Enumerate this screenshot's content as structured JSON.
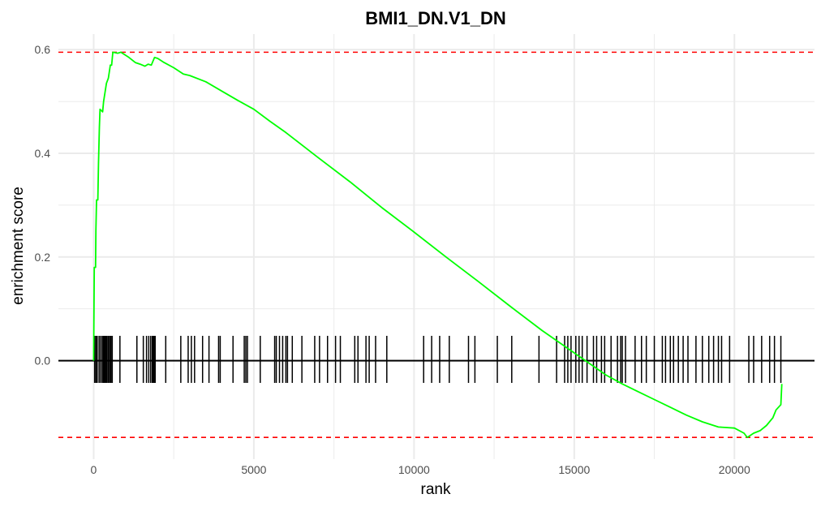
{
  "chart_data": {
    "type": "line",
    "title": "BMI1_DN.V1_DN",
    "xlabel": "rank",
    "ylabel": "enrichment score",
    "xlim": [
      -1100,
      22500
    ],
    "ylim": [
      -0.19,
      0.63
    ],
    "x_ticks": [
      0,
      5000,
      10000,
      15000,
      20000
    ],
    "x_tick_labels": [
      "0",
      "5000",
      "10000",
      "15000",
      "20000"
    ],
    "y_ticks": [
      0.0,
      0.2,
      0.4,
      0.6
    ],
    "y_tick_labels": [
      "0.0",
      "0.2",
      "0.4",
      "0.6"
    ],
    "grid": true,
    "colors": {
      "curve": "#00ff00",
      "limits": "#ff0000",
      "hits": "#000000",
      "grid": "#ebebeb"
    },
    "max_es": 0.595,
    "min_es": -0.148,
    "running_score": {
      "name": "",
      "points": [
        [
          0,
          0.0
        ],
        [
          20,
          0.18
        ],
        [
          60,
          0.18
        ],
        [
          70,
          0.25
        ],
        [
          90,
          0.31
        ],
        [
          130,
          0.31
        ],
        [
          150,
          0.38
        ],
        [
          180,
          0.45
        ],
        [
          200,
          0.485
        ],
        [
          280,
          0.48
        ],
        [
          310,
          0.5
        ],
        [
          360,
          0.52
        ],
        [
          400,
          0.535
        ],
        [
          460,
          0.545
        ],
        [
          520,
          0.57
        ],
        [
          560,
          0.57
        ],
        [
          600,
          0.595
        ],
        [
          750,
          0.593
        ],
        [
          850,
          0.595
        ],
        [
          1100,
          0.585
        ],
        [
          1300,
          0.575
        ],
        [
          1450,
          0.572
        ],
        [
          1600,
          0.568
        ],
        [
          1700,
          0.572
        ],
        [
          1800,
          0.57
        ],
        [
          1900,
          0.585
        ],
        [
          2000,
          0.583
        ],
        [
          2200,
          0.575
        ],
        [
          2500,
          0.565
        ],
        [
          2800,
          0.553
        ],
        [
          3000,
          0.55
        ],
        [
          3500,
          0.538
        ],
        [
          4000,
          0.52
        ],
        [
          4500,
          0.502
        ],
        [
          5000,
          0.485
        ],
        [
          5500,
          0.462
        ],
        [
          6000,
          0.44
        ],
        [
          7000,
          0.392
        ],
        [
          8000,
          0.345
        ],
        [
          9000,
          0.295
        ],
        [
          10000,
          0.248
        ],
        [
          11000,
          0.2
        ],
        [
          12000,
          0.153
        ],
        [
          13000,
          0.105
        ],
        [
          14000,
          0.058
        ],
        [
          15000,
          0.015
        ],
        [
          16000,
          -0.028
        ],
        [
          16500,
          -0.045
        ],
        [
          17000,
          -0.06
        ],
        [
          17500,
          -0.075
        ],
        [
          18000,
          -0.09
        ],
        [
          18500,
          -0.105
        ],
        [
          19000,
          -0.118
        ],
        [
          19500,
          -0.128
        ],
        [
          20000,
          -0.13
        ],
        [
          20300,
          -0.14
        ],
        [
          20400,
          -0.148
        ],
        [
          20600,
          -0.14
        ],
        [
          20800,
          -0.135
        ],
        [
          21000,
          -0.125
        ],
        [
          21200,
          -0.11
        ],
        [
          21300,
          -0.095
        ],
        [
          21450,
          -0.085
        ],
        [
          21480,
          -0.045
        ]
      ]
    },
    "hit_ranks": [
      30,
      70,
      110,
      170,
      220,
      270,
      300,
      330,
      360,
      390,
      420,
      460,
      500,
      540,
      580,
      820,
      1350,
      1550,
      1650,
      1720,
      1780,
      1830,
      1860,
      1890,
      1920,
      2250,
      2720,
      2950,
      3050,
      3150,
      3400,
      3600,
      3900,
      3950,
      4350,
      4700,
      4750,
      4800,
      5200,
      5650,
      5700,
      5800,
      5900,
      6000,
      6050,
      6200,
      6500,
      6900,
      7050,
      7300,
      7550,
      7700,
      8150,
      8250,
      8500,
      8600,
      8800,
      9150,
      10300,
      10550,
      10800,
      11100,
      11700,
      11900,
      12600,
      13050,
      13900,
      14450,
      14700,
      14800,
      14900,
      15050,
      15150,
      15250,
      15400,
      15600,
      15700,
      15850,
      15950,
      16150,
      16350,
      16450,
      16500,
      16600,
      16900,
      17100,
      17250,
      17500,
      17750,
      17850,
      18000,
      18100,
      18250,
      18400,
      18550,
      18800,
      19000,
      19200,
      19350,
      19500,
      19600,
      19850,
      20450,
      20600,
      20850,
      21100,
      21250,
      21450
    ]
  }
}
